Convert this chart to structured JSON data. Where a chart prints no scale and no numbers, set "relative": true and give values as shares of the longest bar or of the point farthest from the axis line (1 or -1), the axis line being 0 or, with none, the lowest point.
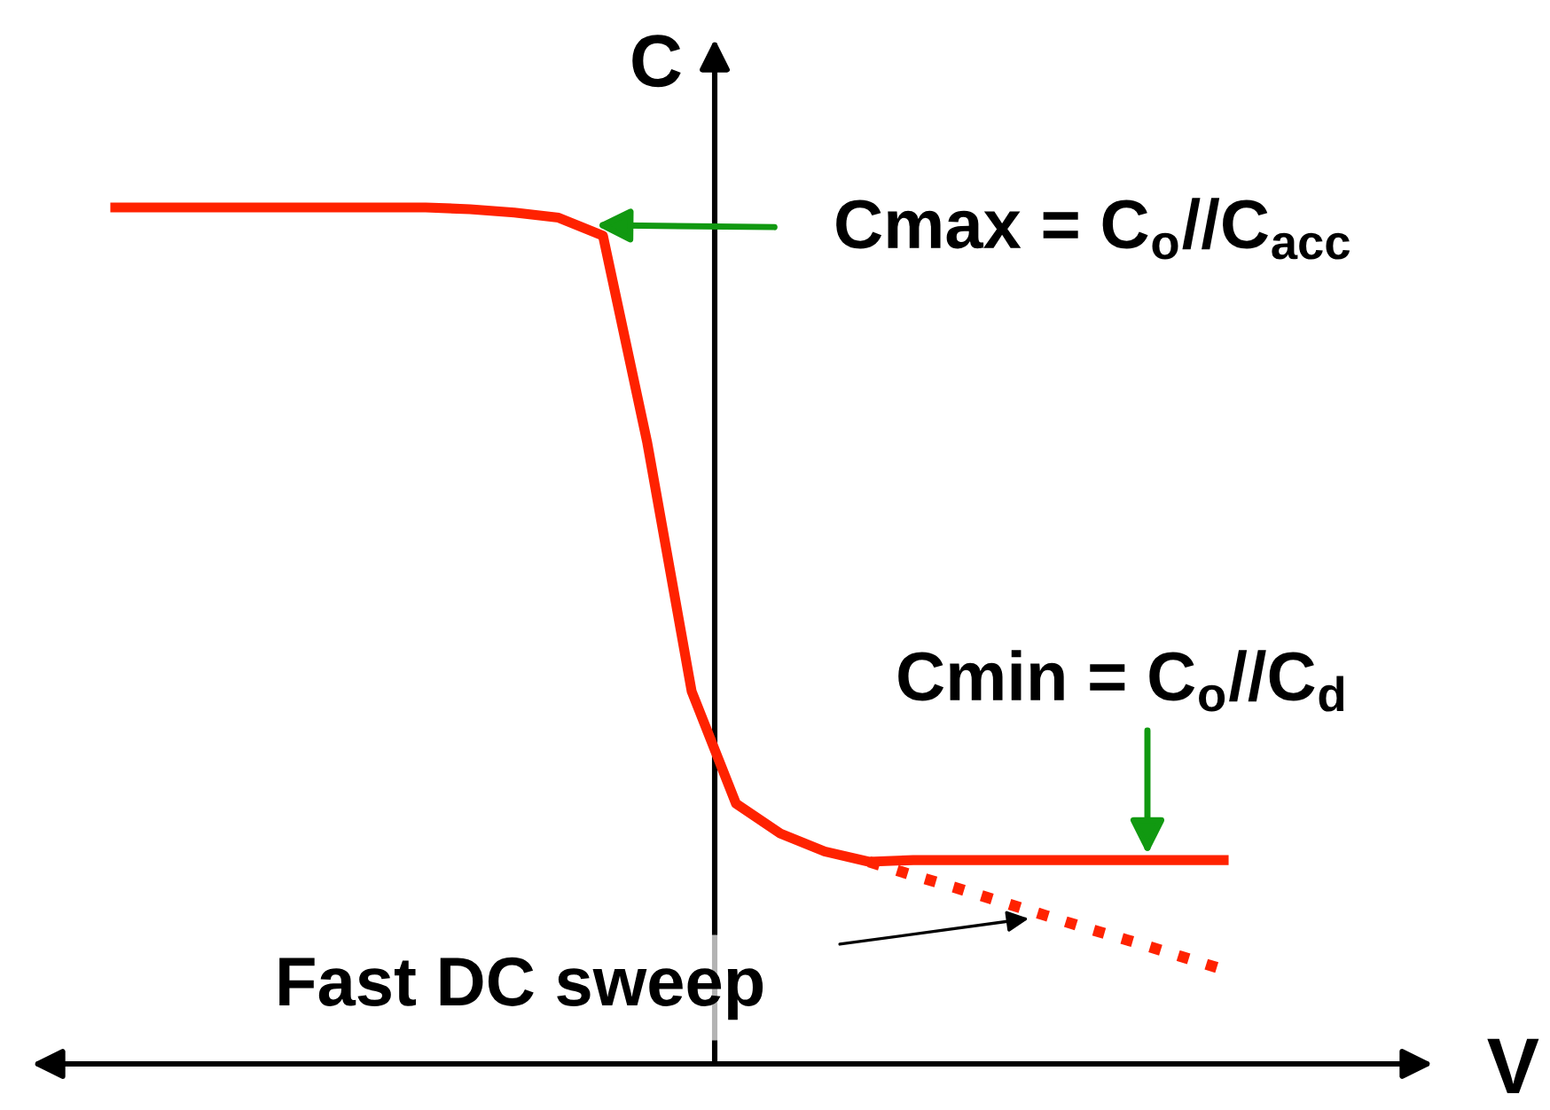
{
  "chart_data": {
    "type": "line",
    "relative": true,
    "xlabel": "V",
    "ylabel": "C",
    "categories": [
      null,
      null,
      null,
      null,
      null,
      null,
      null,
      null,
      null,
      null,
      null,
      null,
      null,
      null,
      null,
      null,
      null,
      null,
      null,
      null,
      null,
      null,
      null,
      null,
      null,
      null
    ],
    "series": [
      {
        "color": "#ff2200",
        "line_style": "solid",
        "values": [
          1.0,
          1.0,
          1.0,
          1.0,
          1.0,
          1.0,
          1.0,
          1.0,
          0.998,
          0.994,
          0.988,
          0.967,
          0.725,
          0.435,
          0.304,
          0.269,
          0.248,
          0.236,
          0.238,
          0.238,
          0.238,
          0.238,
          0.238,
          0.238,
          0.238,
          0.238
        ]
      },
      {
        "color": "#ff2200",
        "line_style": "dotted",
        "values": [
          null,
          null,
          null,
          null,
          null,
          null,
          null,
          null,
          null,
          null,
          null,
          null,
          null,
          null,
          null,
          null,
          null,
          0.236,
          0.22,
          0.205,
          0.189,
          0.173,
          0.157,
          0.142,
          0.126,
          0.11
        ]
      }
    ],
    "annotations": [
      "Cmax = C$_{o}$//C$_{acc}$",
      "Cmin = C$_{o}$//C$_{d}$",
      "Fast DC sweep"
    ],
    "legend": false,
    "grid": false,
    "marker": "none",
    "tick_labels": false
  }
}
